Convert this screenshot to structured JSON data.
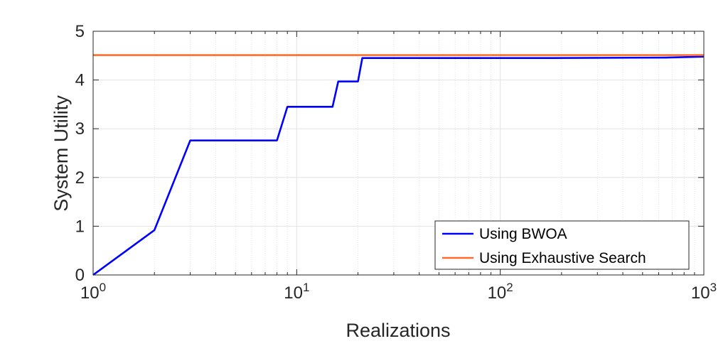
{
  "chart_data": {
    "type": "line",
    "xlabel": "Realizations",
    "ylabel": "System Utility",
    "xscale": "log",
    "xlim": [
      1,
      1000
    ],
    "ylim": [
      0,
      5
    ],
    "xticks": [
      {
        "value": 1,
        "base": "10",
        "exp": "0"
      },
      {
        "value": 10,
        "base": "10",
        "exp": "1"
      },
      {
        "value": 100,
        "base": "10",
        "exp": "2"
      },
      {
        "value": 1000,
        "base": "10",
        "exp": "3"
      }
    ],
    "yticks": [
      {
        "value": 0,
        "label": "0"
      },
      {
        "value": 1,
        "label": "1"
      },
      {
        "value": 2,
        "label": "2"
      },
      {
        "value": 3,
        "label": "3"
      },
      {
        "value": 4,
        "label": "4"
      },
      {
        "value": 5,
        "label": "5"
      }
    ],
    "grid": true,
    "legend_position": "bottom-right",
    "series": [
      {
        "name": "Using BWOA",
        "color": "#0000ff",
        "x": [
          1,
          2,
          3,
          8,
          9,
          15,
          16,
          20,
          21,
          180,
          650,
          1000
        ],
        "y": [
          0,
          0.92,
          2.76,
          2.76,
          3.45,
          3.45,
          3.97,
          3.97,
          4.45,
          4.45,
          4.46,
          4.48
        ]
      },
      {
        "name": "Using Exhaustive Search",
        "color": "#ff6b2b",
        "x": [
          1,
          1000
        ],
        "y": [
          4.51,
          4.51
        ]
      }
    ]
  }
}
